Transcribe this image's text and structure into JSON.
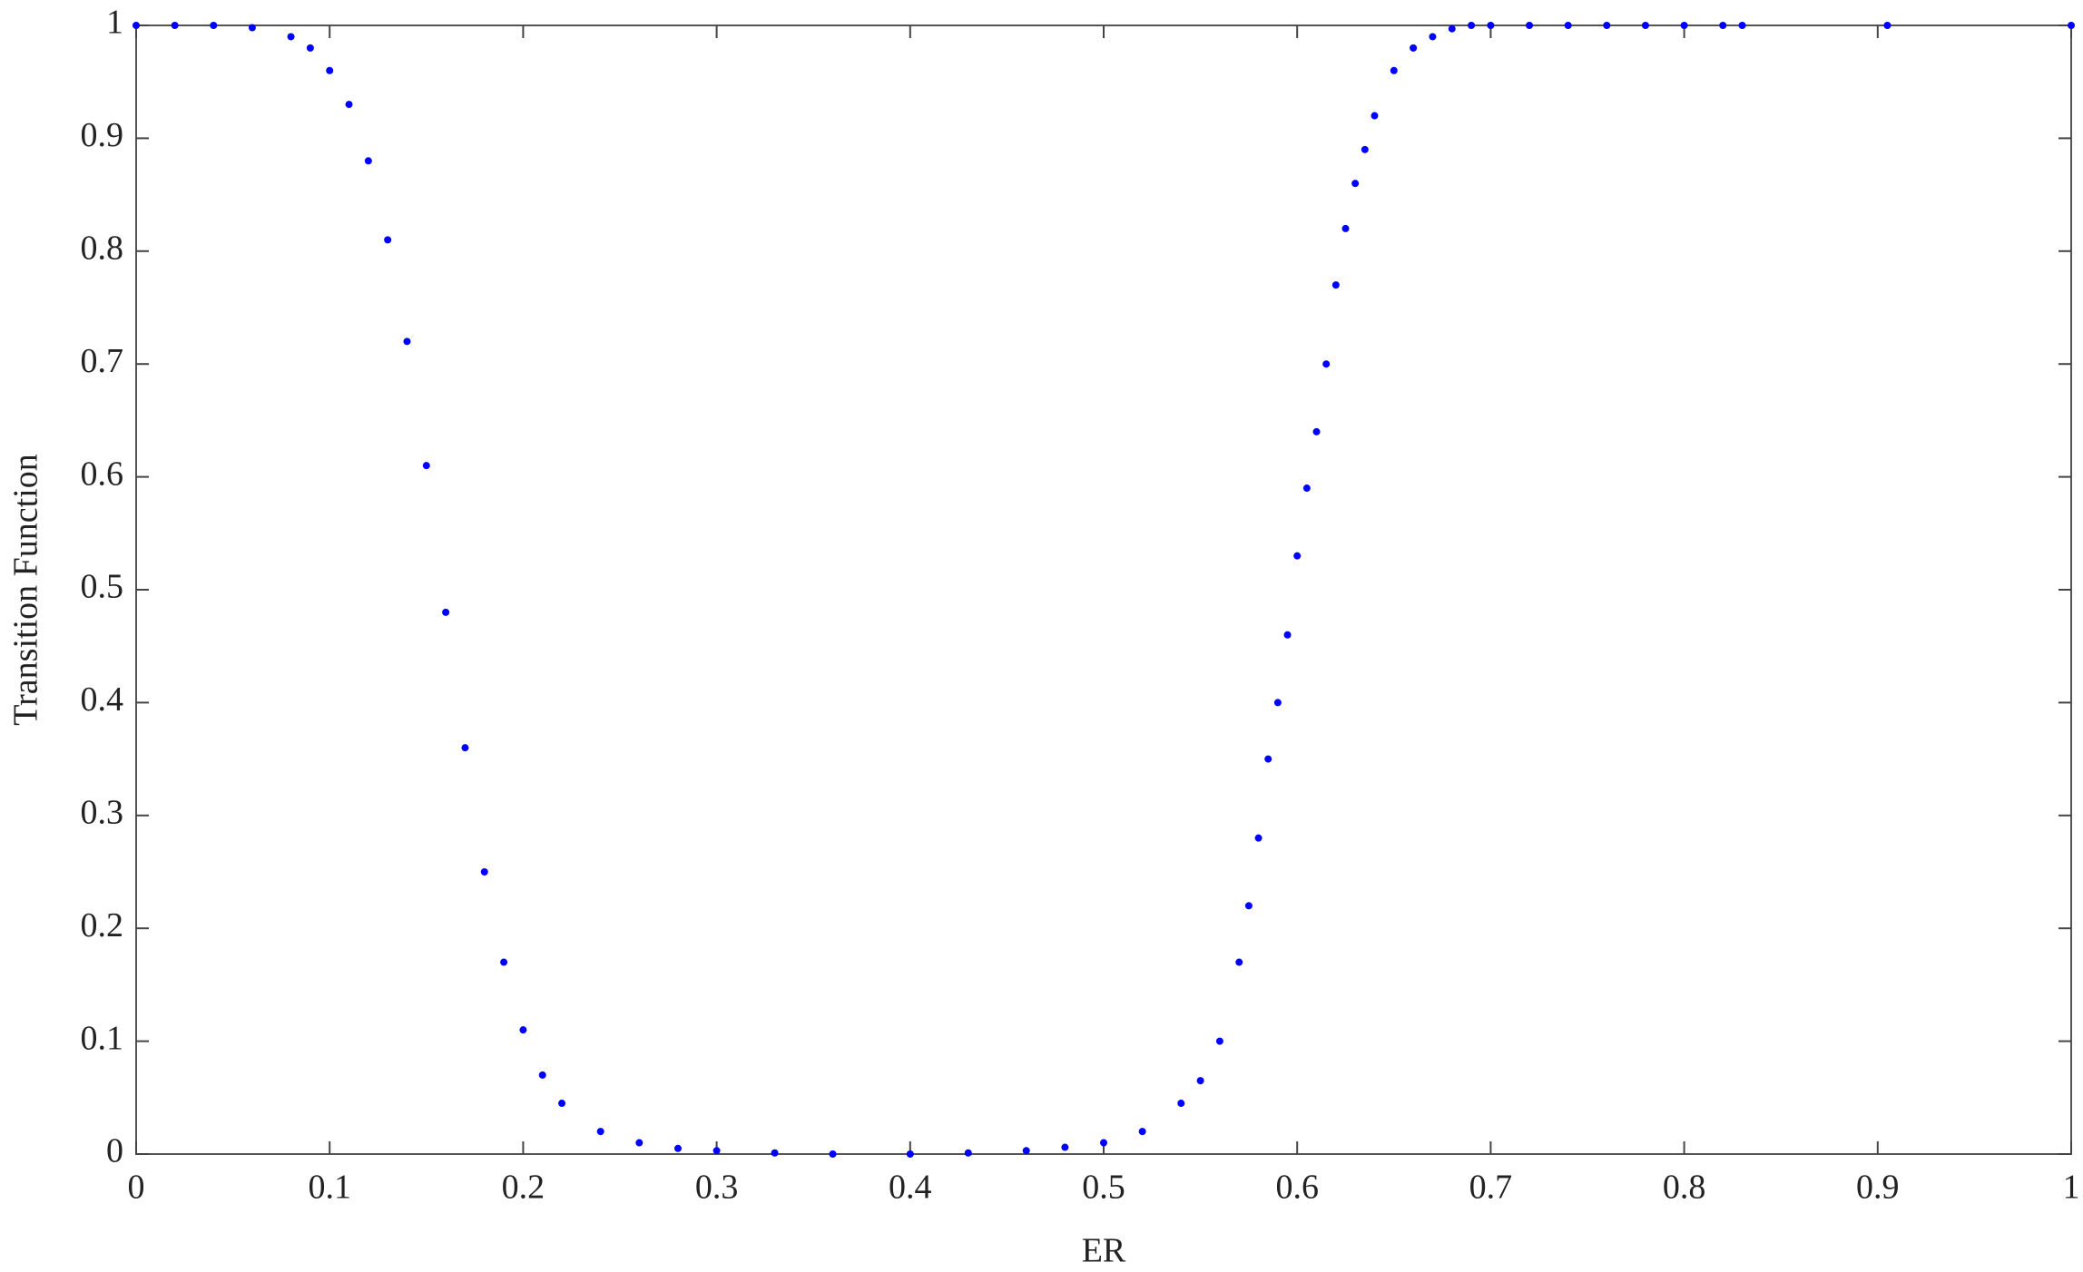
{
  "chart_data": {
    "type": "scatter",
    "x_label": "ER",
    "y_label": "Transition Function",
    "series": [
      {
        "color": "#0000ff",
        "x": [
          0,
          0.02,
          0.04,
          0.06,
          0.08,
          0.09,
          0.1,
          0.11,
          0.12,
          0.13,
          0.14,
          0.15,
          0.16,
          0.17,
          0.18,
          0.19,
          0.2,
          0.21,
          0.22,
          0.24,
          0.26,
          0.28,
          0.3,
          0.33,
          0.36,
          0.4,
          0.43,
          0.46,
          0.48,
          0.5,
          0.52,
          0.54,
          0.55,
          0.56,
          0.57,
          0.575,
          0.58,
          0.585,
          0.59,
          0.595,
          0.6,
          0.605,
          0.61,
          0.615,
          0.62,
          0.625,
          0.63,
          0.635,
          0.64,
          0.65,
          0.66,
          0.67,
          0.68,
          0.69,
          0.7,
          0.72,
          0.74,
          0.76,
          0.78,
          0.8,
          0.82,
          0.83,
          0.905,
          1.0
        ],
        "values": [
          1,
          1,
          1,
          0.998,
          0.99,
          0.98,
          0.96,
          0.93,
          0.88,
          0.81,
          0.72,
          0.61,
          0.48,
          0.36,
          0.25,
          0.17,
          0.11,
          0.07,
          0.045,
          0.02,
          0.01,
          0.005,
          0.003,
          0.001,
          0,
          0,
          0.001,
          0.003,
          0.006,
          0.01,
          0.02,
          0.045,
          0.065,
          0.1,
          0.17,
          0.22,
          0.28,
          0.35,
          0.4,
          0.46,
          0.53,
          0.59,
          0.64,
          0.7,
          0.77,
          0.82,
          0.86,
          0.89,
          0.92,
          0.96,
          0.98,
          0.99,
          0.997,
          1,
          1,
          1,
          1,
          1,
          1,
          1,
          1,
          1,
          1,
          1
        ]
      }
    ],
    "xlim": [
      0,
      1
    ],
    "ylim": [
      0,
      1
    ],
    "xticks": [
      0,
      0.1,
      0.2,
      0.3,
      0.4,
      0.5,
      0.6,
      0.7,
      0.8,
      0.9,
      1
    ],
    "yticks": [
      0,
      0.1,
      0.2,
      0.3,
      0.4,
      0.5,
      0.6,
      0.7,
      0.8,
      0.9,
      1
    ]
  }
}
